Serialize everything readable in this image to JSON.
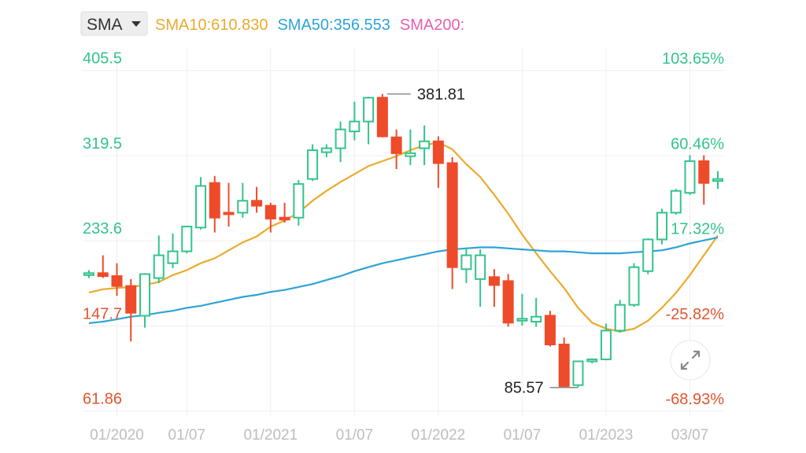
{
  "chart_data": {
    "type": "candlestick",
    "indicator": "SMA",
    "categories": [
      null,
      null,
      "01/2020",
      null,
      null,
      null,
      null,
      "01/07",
      null,
      null,
      null,
      null,
      null,
      "01/2021",
      null,
      null,
      null,
      null,
      null,
      "01/07",
      null,
      null,
      null,
      null,
      null,
      "01/2022",
      null,
      null,
      null,
      null,
      null,
      "01/07",
      null,
      null,
      null,
      null,
      null,
      "01/2023",
      null,
      null,
      null,
      null,
      null,
      "03/07",
      null,
      null
    ],
    "open": [
      199,
      201,
      198,
      188,
      158,
      196,
      211,
      223,
      247,
      292,
      262,
      262,
      274,
      269,
      257,
      257,
      296,
      323,
      327,
      344,
      354,
      378,
      338,
      319,
      327,
      334,
      312,
      205,
      195,
      197,
      193,
      153,
      152,
      158,
      129,
      88,
      112,
      114,
      143,
      169,
      203,
      235,
      262,
      282,
      314,
      294
    ],
    "high": [
      204,
      219,
      211,
      195,
      201,
      239,
      241,
      248,
      298,
      299,
      292,
      292,
      288,
      272,
      272,
      295,
      331,
      331,
      354,
      374,
      379,
      381.81,
      346,
      346,
      350,
      339,
      318,
      227,
      225,
      205,
      200,
      180,
      176,
      163,
      136,
      112,
      115,
      150,
      174,
      211,
      236,
      266,
      286,
      320,
      320,
      304
    ],
    "low": [
      196,
      196,
      178,
      132,
      146,
      191,
      206,
      221,
      245,
      242,
      248,
      257,
      262,
      242,
      252,
      249,
      294,
      318,
      313,
      335,
      331,
      338,
      306,
      310,
      310,
      287,
      185,
      191,
      167,
      167,
      147,
      148,
      147,
      127,
      85.57,
      86,
      110,
      113,
      141,
      167,
      200,
      230,
      260,
      280,
      270,
      286
    ],
    "close": [
      201,
      198,
      188,
      161,
      200,
      219,
      223,
      248,
      289,
      257,
      261,
      274,
      269,
      256,
      255,
      291,
      325,
      327,
      346,
      354,
      378,
      339,
      322,
      322,
      334,
      312,
      207,
      219,
      219,
      189,
      151,
      155,
      157,
      129,
      87,
      112,
      114,
      143,
      169,
      207,
      235,
      262,
      284,
      314,
      292,
      296
    ],
    "up_color": "#33c38c",
    "down_color": "#ee4b2b",
    "series": [
      {
        "name": "SMA10:610.830",
        "color": "#e9ab2e",
        "values": [
          181.5,
          184.7,
          186,
          187,
          189,
          192,
          199,
          204,
          211,
          216,
          224,
          232,
          238,
          248,
          254,
          262,
          274,
          284,
          293,
          301,
          309,
          314,
          319,
          325,
          330,
          333,
          326,
          311,
          298,
          280,
          261,
          240,
          221,
          203,
          186,
          166,
          151,
          145,
          142,
          145,
          153,
          166,
          181,
          199,
          219,
          239
        ]
      },
      {
        "name": "SMA50:356.553",
        "color": "#2fa3d6",
        "values": [
          150.5,
          152,
          154.5,
          157,
          158.5,
          161,
          163,
          166,
          168,
          171,
          174,
          177,
          179,
          182,
          184,
          187,
          190,
          194,
          198,
          203,
          207,
          211,
          214,
          217,
          220,
          223,
          225,
          226,
          227,
          227,
          226,
          225,
          224,
          223,
          223,
          222,
          221,
          221,
          221,
          222,
          223,
          224,
          227,
          231,
          234,
          237
        ]
      },
      {
        "name": "SMA200:",
        "color": "#e55fae",
        "values": [
          null,
          null,
          null,
          null,
          null,
          null,
          null,
          null,
          null,
          null,
          null,
          null,
          null,
          null,
          null,
          null,
          null,
          null,
          null,
          null,
          null,
          null,
          null,
          null,
          null,
          null,
          null,
          null,
          null,
          null,
          null,
          null,
          null,
          null,
          null,
          null,
          null,
          null,
          null,
          null,
          null,
          null,
          null,
          null,
          null,
          null
        ]
      }
    ],
    "ylim": [
      56,
      429
    ],
    "yticks": [
      405.5,
      319.5,
      233.6,
      147.7,
      61.86
    ],
    "y2lim": [
      -71.7,
      115.6
    ],
    "y2ticks": [
      {
        "value": 103.65,
        "label": "103.65%"
      },
      {
        "value": 60.46,
        "label": "60.46%"
      },
      {
        "value": 17.32,
        "label": "17.32%"
      },
      {
        "value": -25.82,
        "label": "-25.82%"
      },
      {
        "value": -68.93,
        "label": "-68.93%"
      }
    ],
    "positive_color": "#33c38c",
    "negative_color": "#e0562f",
    "grid": true
  }
}
